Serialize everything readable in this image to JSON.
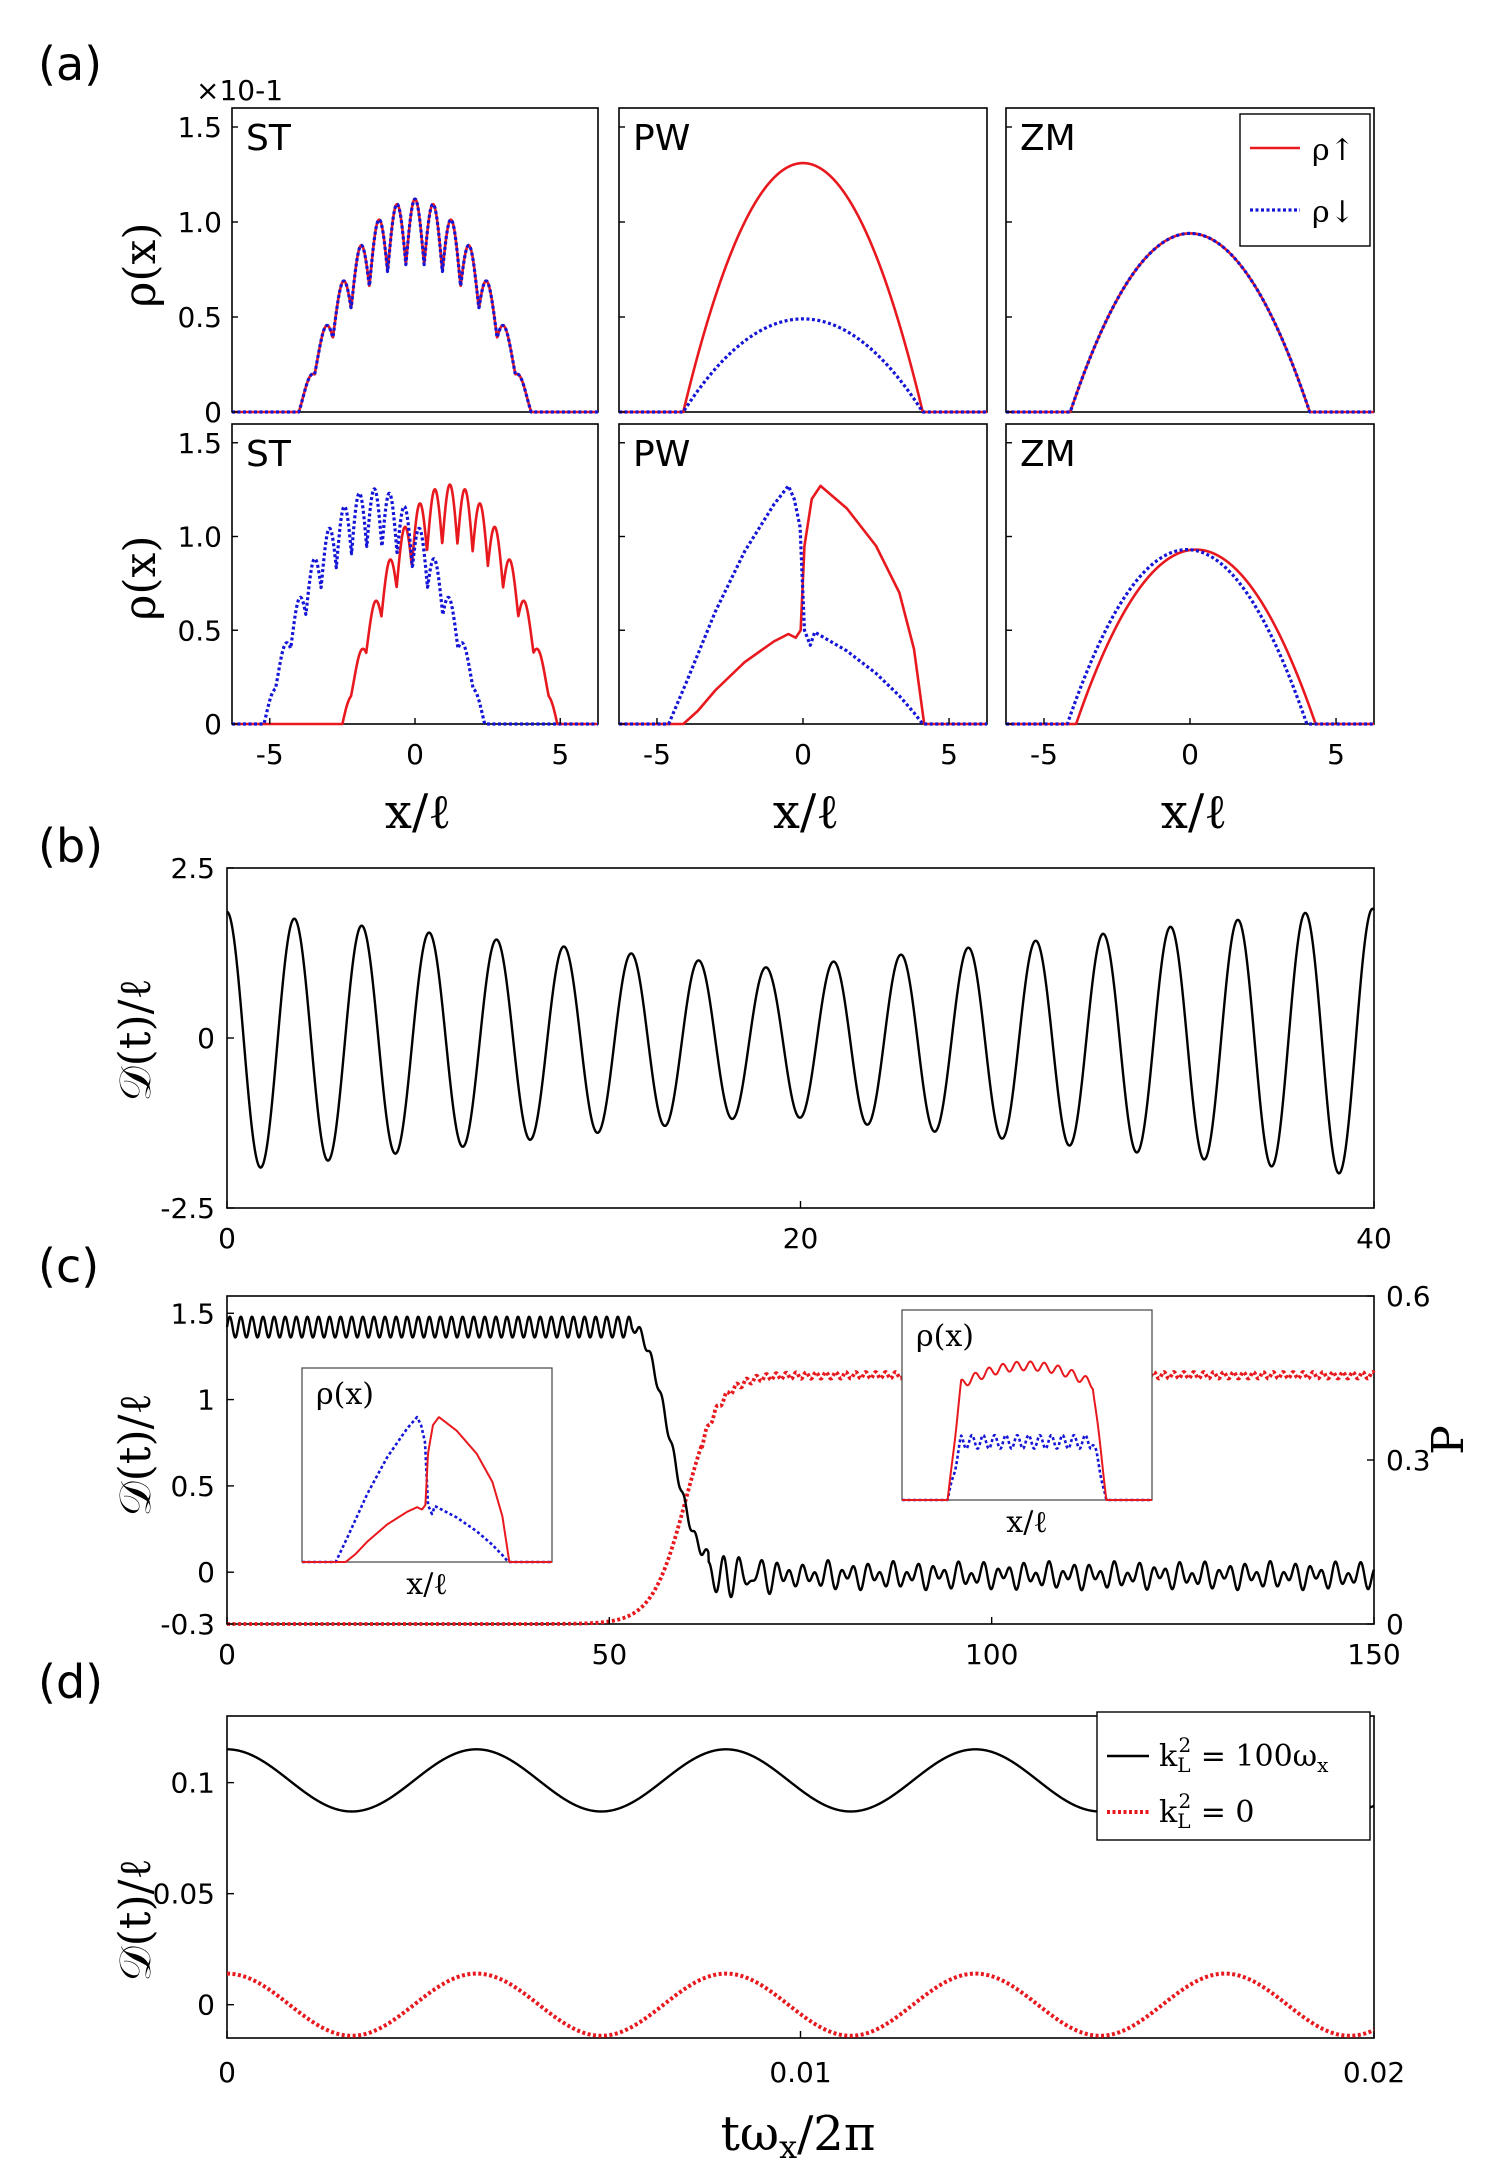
{
  "colors": {
    "up": "#e8191e",
    "down": "#1515d8",
    "d": "#000000",
    "p": "#e8191e"
  },
  "panel_labels": [
    "(a)",
    "(b)",
    "(c)",
    "(d)"
  ],
  "chart_data": [
    {
      "id": "a",
      "type": "line",
      "multiplier": "×10-1",
      "ylabel": "ρ(x)",
      "xlabel": "x/ℓ",
      "xlim": [
        -6.3,
        6.3
      ],
      "ylim": [
        0,
        1.6
      ],
      "xticks": [
        "-5",
        "0",
        "5"
      ],
      "yticks": [
        "0",
        "0.5",
        "1.0",
        "1.5"
      ],
      "legend": {
        "position": "top-right",
        "entries": [
          "ρ↑",
          "ρ↓"
        ]
      },
      "rows": [
        {
          "subplots": [
            {
              "tag": "ST",
              "series": [
                {
                  "name": "ρ↑",
                  "style": "solid",
                  "envelope": "parabola",
                  "peak": 0.95,
                  "half_width": 4.0,
                  "modulation": 0.18,
                  "k": 10
                },
                {
                  "name": "ρ↓",
                  "style": "dotted",
                  "envelope": "parabola",
                  "peak": 0.95,
                  "half_width": 4.0,
                  "modulation": 0.18,
                  "k": 10
                }
              ]
            },
            {
              "tag": "PW",
              "series": [
                {
                  "name": "ρ↑",
                  "style": "solid",
                  "envelope": "parabola",
                  "peak": 1.31,
                  "half_width": 4.1
                },
                {
                  "name": "ρ↓",
                  "style": "dotted",
                  "envelope": "parabola",
                  "peak": 0.49,
                  "half_width": 4.1
                }
              ]
            },
            {
              "tag": "ZM",
              "series": [
                {
                  "name": "ρ↑",
                  "style": "solid",
                  "envelope": "parabola",
                  "peak": 0.94,
                  "half_width": 4.1
                },
                {
                  "name": "ρ↓",
                  "style": "dotted",
                  "envelope": "parabola",
                  "peak": 0.94,
                  "half_width": 4.1
                }
              ]
            }
          ]
        },
        {
          "subplots": [
            {
              "tag": "ST",
              "series": [
                {
                  "name": "ρ↑",
                  "style": "solid",
                  "envelope": "parabola",
                  "center": 1.2,
                  "peak": 1.12,
                  "half_width": 3.7,
                  "modulation": 0.14,
                  "k": 12
                },
                {
                  "name": "ρ↓",
                  "style": "dotted",
                  "envelope": "parabola",
                  "center": -1.4,
                  "peak": 1.1,
                  "half_width": 3.8,
                  "modulation": 0.14,
                  "k": 12
                }
              ]
            },
            {
              "tag": "PW",
              "series": [
                {
                  "name": "ρ↑",
                  "style": "solid",
                  "points": [
                    [
                      -6.3,
                      0
                    ],
                    [
                      -4.1,
                      0
                    ],
                    [
                      -3.6,
                      0.07
                    ],
                    [
                      -3.0,
                      0.18
                    ],
                    [
                      -2.0,
                      0.33
                    ],
                    [
                      -1.0,
                      0.44
                    ],
                    [
                      -0.5,
                      0.48
                    ],
                    [
                      -0.25,
                      0.46
                    ],
                    [
                      -0.08,
                      0.5
                    ],
                    [
                      0.05,
                      0.95
                    ],
                    [
                      0.3,
                      1.2
                    ],
                    [
                      0.6,
                      1.27
                    ],
                    [
                      1.5,
                      1.15
                    ],
                    [
                      2.5,
                      0.95
                    ],
                    [
                      3.3,
                      0.7
                    ],
                    [
                      3.8,
                      0.4
                    ],
                    [
                      4.15,
                      0.0
                    ],
                    [
                      6.3,
                      0
                    ]
                  ]
                },
                {
                  "name": "ρ↓",
                  "style": "dotted",
                  "points": [
                    [
                      -6.3,
                      0
                    ],
                    [
                      -4.6,
                      0
                    ],
                    [
                      -4.0,
                      0.22
                    ],
                    [
                      -3.0,
                      0.6
                    ],
                    [
                      -2.0,
                      0.92
                    ],
                    [
                      -1.0,
                      1.17
                    ],
                    [
                      -0.5,
                      1.27
                    ],
                    [
                      -0.3,
                      1.2
                    ],
                    [
                      -0.1,
                      1.05
                    ],
                    [
                      0.05,
                      0.5
                    ],
                    [
                      0.25,
                      0.42
                    ],
                    [
                      0.4,
                      0.49
                    ],
                    [
                      1.5,
                      0.39
                    ],
                    [
                      2.5,
                      0.27
                    ],
                    [
                      3.3,
                      0.15
                    ],
                    [
                      3.8,
                      0.06
                    ],
                    [
                      4.1,
                      0
                    ],
                    [
                      6.3,
                      0
                    ]
                  ]
                }
              ]
            },
            {
              "tag": "ZM",
              "series": [
                {
                  "name": "ρ↑",
                  "style": "solid",
                  "envelope": "parabola",
                  "center": 0.2,
                  "peak": 0.93,
                  "half_width": 4.1
                },
                {
                  "name": "ρ↓",
                  "style": "dotted",
                  "envelope": "parabola",
                  "center": -0.1,
                  "peak": 0.93,
                  "half_width": 4.1
                }
              ]
            }
          ]
        }
      ]
    },
    {
      "id": "b",
      "type": "line",
      "ylabel": "𝒟(t)/ℓ",
      "xlim": [
        0,
        40
      ],
      "ylim": [
        -2.5,
        2.5
      ],
      "xticks": [
        "0",
        "20",
        "40"
      ],
      "yticks": [
        "-2.5",
        "0",
        "2.5"
      ],
      "series": [
        {
          "name": "",
          "style": "solid",
          "oscillation": {
            "period": 2.35,
            "amp_max": 1.95,
            "amp_min": 1.08,
            "amp_min_at": 19.0,
            "offset": -0.05
          }
        }
      ]
    },
    {
      "id": "c",
      "type": "line",
      "ylabel": "𝒟(t)/ℓ",
      "ylabel_right": "P",
      "xlim": [
        0,
        150
      ],
      "ylim": [
        -0.3,
        1.6
      ],
      "ylim_right": [
        0,
        0.6
      ],
      "xticks": [
        "0",
        "50",
        "100",
        "150"
      ],
      "yticks": [
        "-0.3",
        "0",
        "0.5",
        "1",
        "1.5"
      ],
      "yticks_right": [
        "0",
        "0.3",
        "0.6"
      ],
      "series": [
        {
          "name": "",
          "axis": "left",
          "style": "solid",
          "before_level": 1.42,
          "before_ripple": 0.06,
          "drop_start": 53,
          "drop_end": 63,
          "after_level": -0.02,
          "after_ripple": 0.07
        },
        {
          "name": "",
          "axis": "right",
          "style": "dotted",
          "before_level": 0.0,
          "rise_center": 60,
          "rise_width": 2.2,
          "after_level": 0.455,
          "after_ripple": 0.006
        }
      ],
      "insets": [
        {
          "ylabel": "ρ(x)",
          "xlabel": "x/ℓ"
        },
        {
          "ylabel": "ρ(x)",
          "xlabel": "x/ℓ"
        }
      ]
    },
    {
      "id": "d",
      "type": "line",
      "ylabel": "𝒟(t)/ℓ",
      "xlabel": "tωx/2π",
      "xlim": [
        0,
        0.02
      ],
      "ylim": [
        -0.015,
        0.13
      ],
      "xticks": [
        "0",
        "0.01",
        "0.02"
      ],
      "yticks": [
        "0",
        "0.05",
        "0.1"
      ],
      "legend": {
        "position": "top-right",
        "entries": [
          "k²L = 100ωx",
          "k²L = 0"
        ]
      },
      "series": [
        {
          "name": "k²L = 100ωx",
          "style": "solid",
          "center": 0.101,
          "amplitude": 0.014,
          "period": 0.00435
        },
        {
          "name": "k²L = 0",
          "style": "dotted",
          "center": 0.0,
          "amplitude": 0.014,
          "period": 0.00435
        }
      ]
    }
  ]
}
